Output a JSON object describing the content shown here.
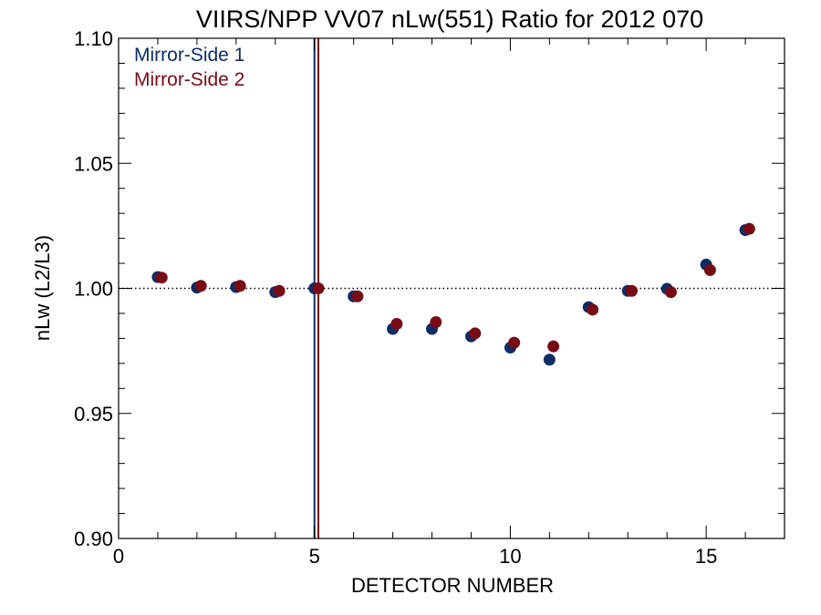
{
  "chart_data": {
    "type": "scatter",
    "title": "VIIRS/NPP VV07 nLw(551) Ratio for 2012 070",
    "xlabel": "DETECTOR NUMBER",
    "ylabel": "nLw (L2/L3)",
    "xlim": [
      0,
      17
    ],
    "ylim": [
      0.9,
      1.1
    ],
    "x_ticks": [
      0,
      5,
      10,
      15
    ],
    "x_tick_labels": [
      "0",
      "5",
      "10",
      "15"
    ],
    "y_ticks": [
      0.9,
      0.95,
      1.0,
      1.05,
      1.1
    ],
    "y_tick_labels": [
      "0.90",
      "0.95",
      "1.00",
      "1.05",
      "1.10"
    ],
    "reference_line_y": 1.0,
    "vertical_lines": [
      {
        "x": 5.0,
        "color": "#0f2c64"
      },
      {
        "x": 5.1,
        "color": "#780c16"
      }
    ],
    "legend_position": "top-left",
    "series": [
      {
        "name": "Mirror-Side 1",
        "color": "#0f2c64",
        "x": [
          1,
          2,
          3,
          4,
          5,
          6,
          7,
          8,
          9,
          10,
          11,
          12,
          13,
          14,
          15,
          16
        ],
        "y": [
          1.0045,
          1.0003,
          1.0005,
          0.9985,
          1.0,
          0.9968,
          0.9838,
          0.9838,
          0.9808,
          0.9763,
          0.9715,
          0.9925,
          0.999,
          0.9998,
          1.0095,
          1.0233
        ]
      },
      {
        "name": "Mirror-Side 2",
        "color": "#780c16",
        "x": [
          1.1,
          2.1,
          3.1,
          4.1,
          5.1,
          6.1,
          7.1,
          8.1,
          9.1,
          10.1,
          11.1,
          12.1,
          13.1,
          14.1,
          15.1,
          16.1
        ],
        "y": [
          1.0043,
          1.001,
          1.001,
          0.999,
          1.0,
          0.9968,
          0.9858,
          0.9865,
          0.982,
          0.9783,
          0.9768,
          0.9915,
          0.999,
          0.9985,
          1.0073,
          1.0238
        ]
      }
    ]
  }
}
